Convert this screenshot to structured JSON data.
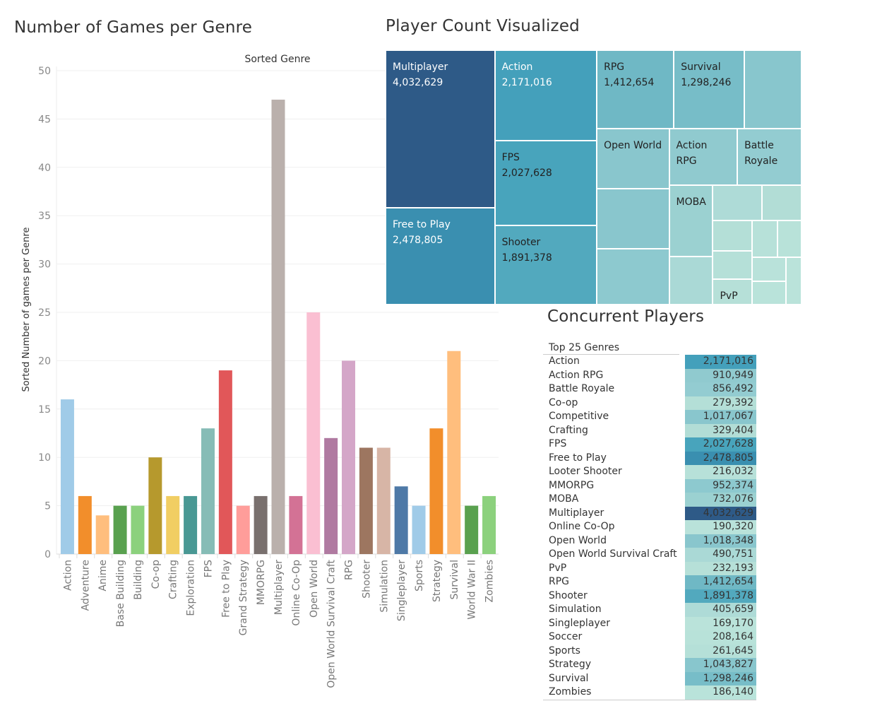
{
  "dashboard": {
    "bar_title": "Number of Games per Genre",
    "tree_title": "Player Count Visualized",
    "table_title": "Concurrent Players"
  },
  "chart_data": [
    {
      "type": "bar",
      "title": "Number of Games per Genre",
      "column_header": "Sorted Genre",
      "xlabel": "",
      "ylabel": "Sorted Number of games per Genre",
      "ylim": [
        0,
        50
      ],
      "yticks": [
        0,
        5,
        10,
        15,
        20,
        25,
        30,
        35,
        40,
        45,
        50
      ],
      "grid": true,
      "categories": [
        "Action",
        "Adventure",
        "Anime",
        "Base Building",
        "Building",
        "Co-op",
        "Crafting",
        "Exploration",
        "FPS",
        "Free to Play",
        "Grand Strategy",
        "MMORPG",
        "Multiplayer",
        "Online Co-Op",
        "Open World",
        "Open World Survival Craft",
        "RPG",
        "Shooter",
        "Simulation",
        "Singleplayer",
        "Sports",
        "Strategy",
        "Survival",
        "World War II",
        "Zombies"
      ],
      "values": [
        16,
        6,
        4,
        5,
        5,
        10,
        6,
        6,
        13,
        19,
        5,
        6,
        47,
        6,
        25,
        12,
        20,
        11,
        11,
        7,
        5,
        13,
        21,
        5,
        6
      ],
      "colors": [
        "#a0cbe8",
        "#f28e2b",
        "#ffbe7d",
        "#59a14f",
        "#8cd17d",
        "#b6992d",
        "#f1ce63",
        "#499894",
        "#86bcb6",
        "#e15759",
        "#ff9d9a",
        "#79706e",
        "#bab0ac",
        "#d37295",
        "#fabfd2",
        "#b07aa1",
        "#d4a6c8",
        "#9d7660",
        "#d7b5a6",
        "#4e79a7",
        "#a0cbe8",
        "#f28e2b",
        "#ffbe7d",
        "#59a14f",
        "#8cd17d"
      ]
    },
    {
      "type": "treemap",
      "title": "Player Count Visualized",
      "cells": [
        {
          "label": "Multiplayer",
          "value": 4032629,
          "value_text": "4,032,629",
          "color": "#2e5a87",
          "text_color": "#ffffff"
        },
        {
          "label": "Free to Play",
          "value": 2478805,
          "value_text": "2,478,805",
          "color": "#3a8fb0",
          "text_color": "#ffffff"
        },
        {
          "label": "Action",
          "value": 2171016,
          "value_text": "2,171,016",
          "color": "#44a0bb",
          "text_color": "#ffffff"
        },
        {
          "label": "FPS",
          "value": 2027628,
          "value_text": "2,027,628",
          "color": "#48a4bc",
          "text_color": "#222222"
        },
        {
          "label": "Shooter",
          "value": 1891378,
          "value_text": "1,891,378",
          "color": "#52a9be",
          "text_color": "#222222"
        },
        {
          "label": "RPG",
          "value": 1412654,
          "value_text": "1,412,654",
          "color": "#6fb8c5",
          "text_color": "#222222"
        },
        {
          "label": "Survival",
          "value": 1298246,
          "value_text": "1,298,246",
          "color": "#77bdc8",
          "text_color": "#222222"
        },
        {
          "label": "",
          "value": 1043827,
          "value_text": "",
          "color": "#88c6cd",
          "text_color": "#222222"
        },
        {
          "label": "Open World",
          "value": 1018348,
          "value_text": "",
          "color": "#89c6cd",
          "text_color": "#222222"
        },
        {
          "label": "",
          "value": 1017067,
          "value_text": "",
          "color": "#89c6cd",
          "text_color": "#222222"
        },
        {
          "label": "",
          "value": 952374,
          "value_text": "",
          "color": "#8dc9cf",
          "text_color": "#222222"
        },
        {
          "label": "Action RPG",
          "value": 910949,
          "value_text": "",
          "color": "#90cacf",
          "text_color": "#222222"
        },
        {
          "label": "Battle Royale",
          "value": 856492,
          "value_text": "",
          "color": "#93ccd1",
          "text_color": "#222222"
        },
        {
          "label": "MOBA",
          "value": 732076,
          "value_text": "",
          "color": "#9bd1d1",
          "text_color": "#222222"
        },
        {
          "label": "",
          "value": 490751,
          "value_text": "",
          "color": "#aad9d6",
          "text_color": "#222222"
        },
        {
          "label": "",
          "value": 405659,
          "value_text": "",
          "color": "#aedbd7",
          "text_color": "#222222"
        },
        {
          "label": "",
          "value": 329404,
          "value_text": "",
          "color": "#b2ddd6",
          "text_color": "#222222"
        },
        {
          "label": "",
          "value": 279392,
          "value_text": "",
          "color": "#b4dfd7",
          "text_color": "#222222"
        },
        {
          "label": "",
          "value": 261645,
          "value_text": "",
          "color": "#b5e0d8",
          "text_color": "#222222"
        },
        {
          "label": "PvP",
          "value": 232193,
          "value_text": "",
          "color": "#b6e0d8",
          "text_color": "#222222"
        },
        {
          "label": "",
          "value": 216032,
          "value_text": "",
          "color": "#b7e1d9",
          "text_color": "#222222"
        },
        {
          "label": "",
          "value": 208164,
          "value_text": "",
          "color": "#b8e2d9",
          "text_color": "#222222"
        },
        {
          "label": "",
          "value": 190320,
          "value_text": "",
          "color": "#b9e2da",
          "text_color": "#222222"
        },
        {
          "label": "",
          "value": 186140,
          "value_text": "",
          "color": "#b9e3da",
          "text_color": "#222222"
        },
        {
          "label": "",
          "value": 169170,
          "value_text": "",
          "color": "#bae3da",
          "text_color": "#222222"
        }
      ]
    },
    {
      "type": "table",
      "title": "Concurrent Players",
      "header": "Top 25 Genres",
      "rows": [
        {
          "genre": "Action",
          "value": 2171016,
          "value_text": "2,171,016",
          "color": "#44a0bb"
        },
        {
          "genre": "Action RPG",
          "value": 910949,
          "value_text": "910,949",
          "color": "#90cacf"
        },
        {
          "genre": "Battle Royale",
          "value": 856492,
          "value_text": "856,492",
          "color": "#93ccd1"
        },
        {
          "genre": "Co-op",
          "value": 279392,
          "value_text": "279,392",
          "color": "#b4dfd7"
        },
        {
          "genre": "Competitive",
          "value": 1017067,
          "value_text": "1,017,067",
          "color": "#89c6cd"
        },
        {
          "genre": "Crafting",
          "value": 329404,
          "value_text": "329,404",
          "color": "#b2ddd6"
        },
        {
          "genre": "FPS",
          "value": 2027628,
          "value_text": "2,027,628",
          "color": "#48a4bc"
        },
        {
          "genre": "Free to Play",
          "value": 2478805,
          "value_text": "2,478,805",
          "color": "#3a8fb0"
        },
        {
          "genre": "Looter Shooter",
          "value": 216032,
          "value_text": "216,032",
          "color": "#b7e1d9"
        },
        {
          "genre": "MMORPG",
          "value": 952374,
          "value_text": "952,374",
          "color": "#8dc9cf"
        },
        {
          "genre": "MOBA",
          "value": 732076,
          "value_text": "732,076",
          "color": "#9bd1d1"
        },
        {
          "genre": "Multiplayer",
          "value": 4032629,
          "value_text": "4,032,629",
          "color": "#2e5a87"
        },
        {
          "genre": "Online Co-Op",
          "value": 190320,
          "value_text": "190,320",
          "color": "#b9e2da"
        },
        {
          "genre": "Open World",
          "value": 1018348,
          "value_text": "1,018,348",
          "color": "#89c6cd"
        },
        {
          "genre": "Open World Survival Craft",
          "value": 490751,
          "value_text": "490,751",
          "color": "#aad9d6"
        },
        {
          "genre": "PvP",
          "value": 232193,
          "value_text": "232,193",
          "color": "#b6e0d8"
        },
        {
          "genre": "RPG",
          "value": 1412654,
          "value_text": "1,412,654",
          "color": "#6fb8c5"
        },
        {
          "genre": "Shooter",
          "value": 1891378,
          "value_text": "1,891,378",
          "color": "#52a9be"
        },
        {
          "genre": "Simulation",
          "value": 405659,
          "value_text": "405,659",
          "color": "#aedbd7"
        },
        {
          "genre": "Singleplayer",
          "value": 169170,
          "value_text": "169,170",
          "color": "#bae3da"
        },
        {
          "genre": "Soccer",
          "value": 208164,
          "value_text": "208,164",
          "color": "#b8e2d9"
        },
        {
          "genre": "Sports",
          "value": 261645,
          "value_text": "261,645",
          "color": "#b5e0d8"
        },
        {
          "genre": "Strategy",
          "value": 1043827,
          "value_text": "1,043,827",
          "color": "#88c6cd"
        },
        {
          "genre": "Survival",
          "value": 1298246,
          "value_text": "1,298,246",
          "color": "#77bdc8"
        },
        {
          "genre": "Zombies",
          "value": 186140,
          "value_text": "186,140",
          "color": "#b9e3da"
        }
      ]
    }
  ]
}
